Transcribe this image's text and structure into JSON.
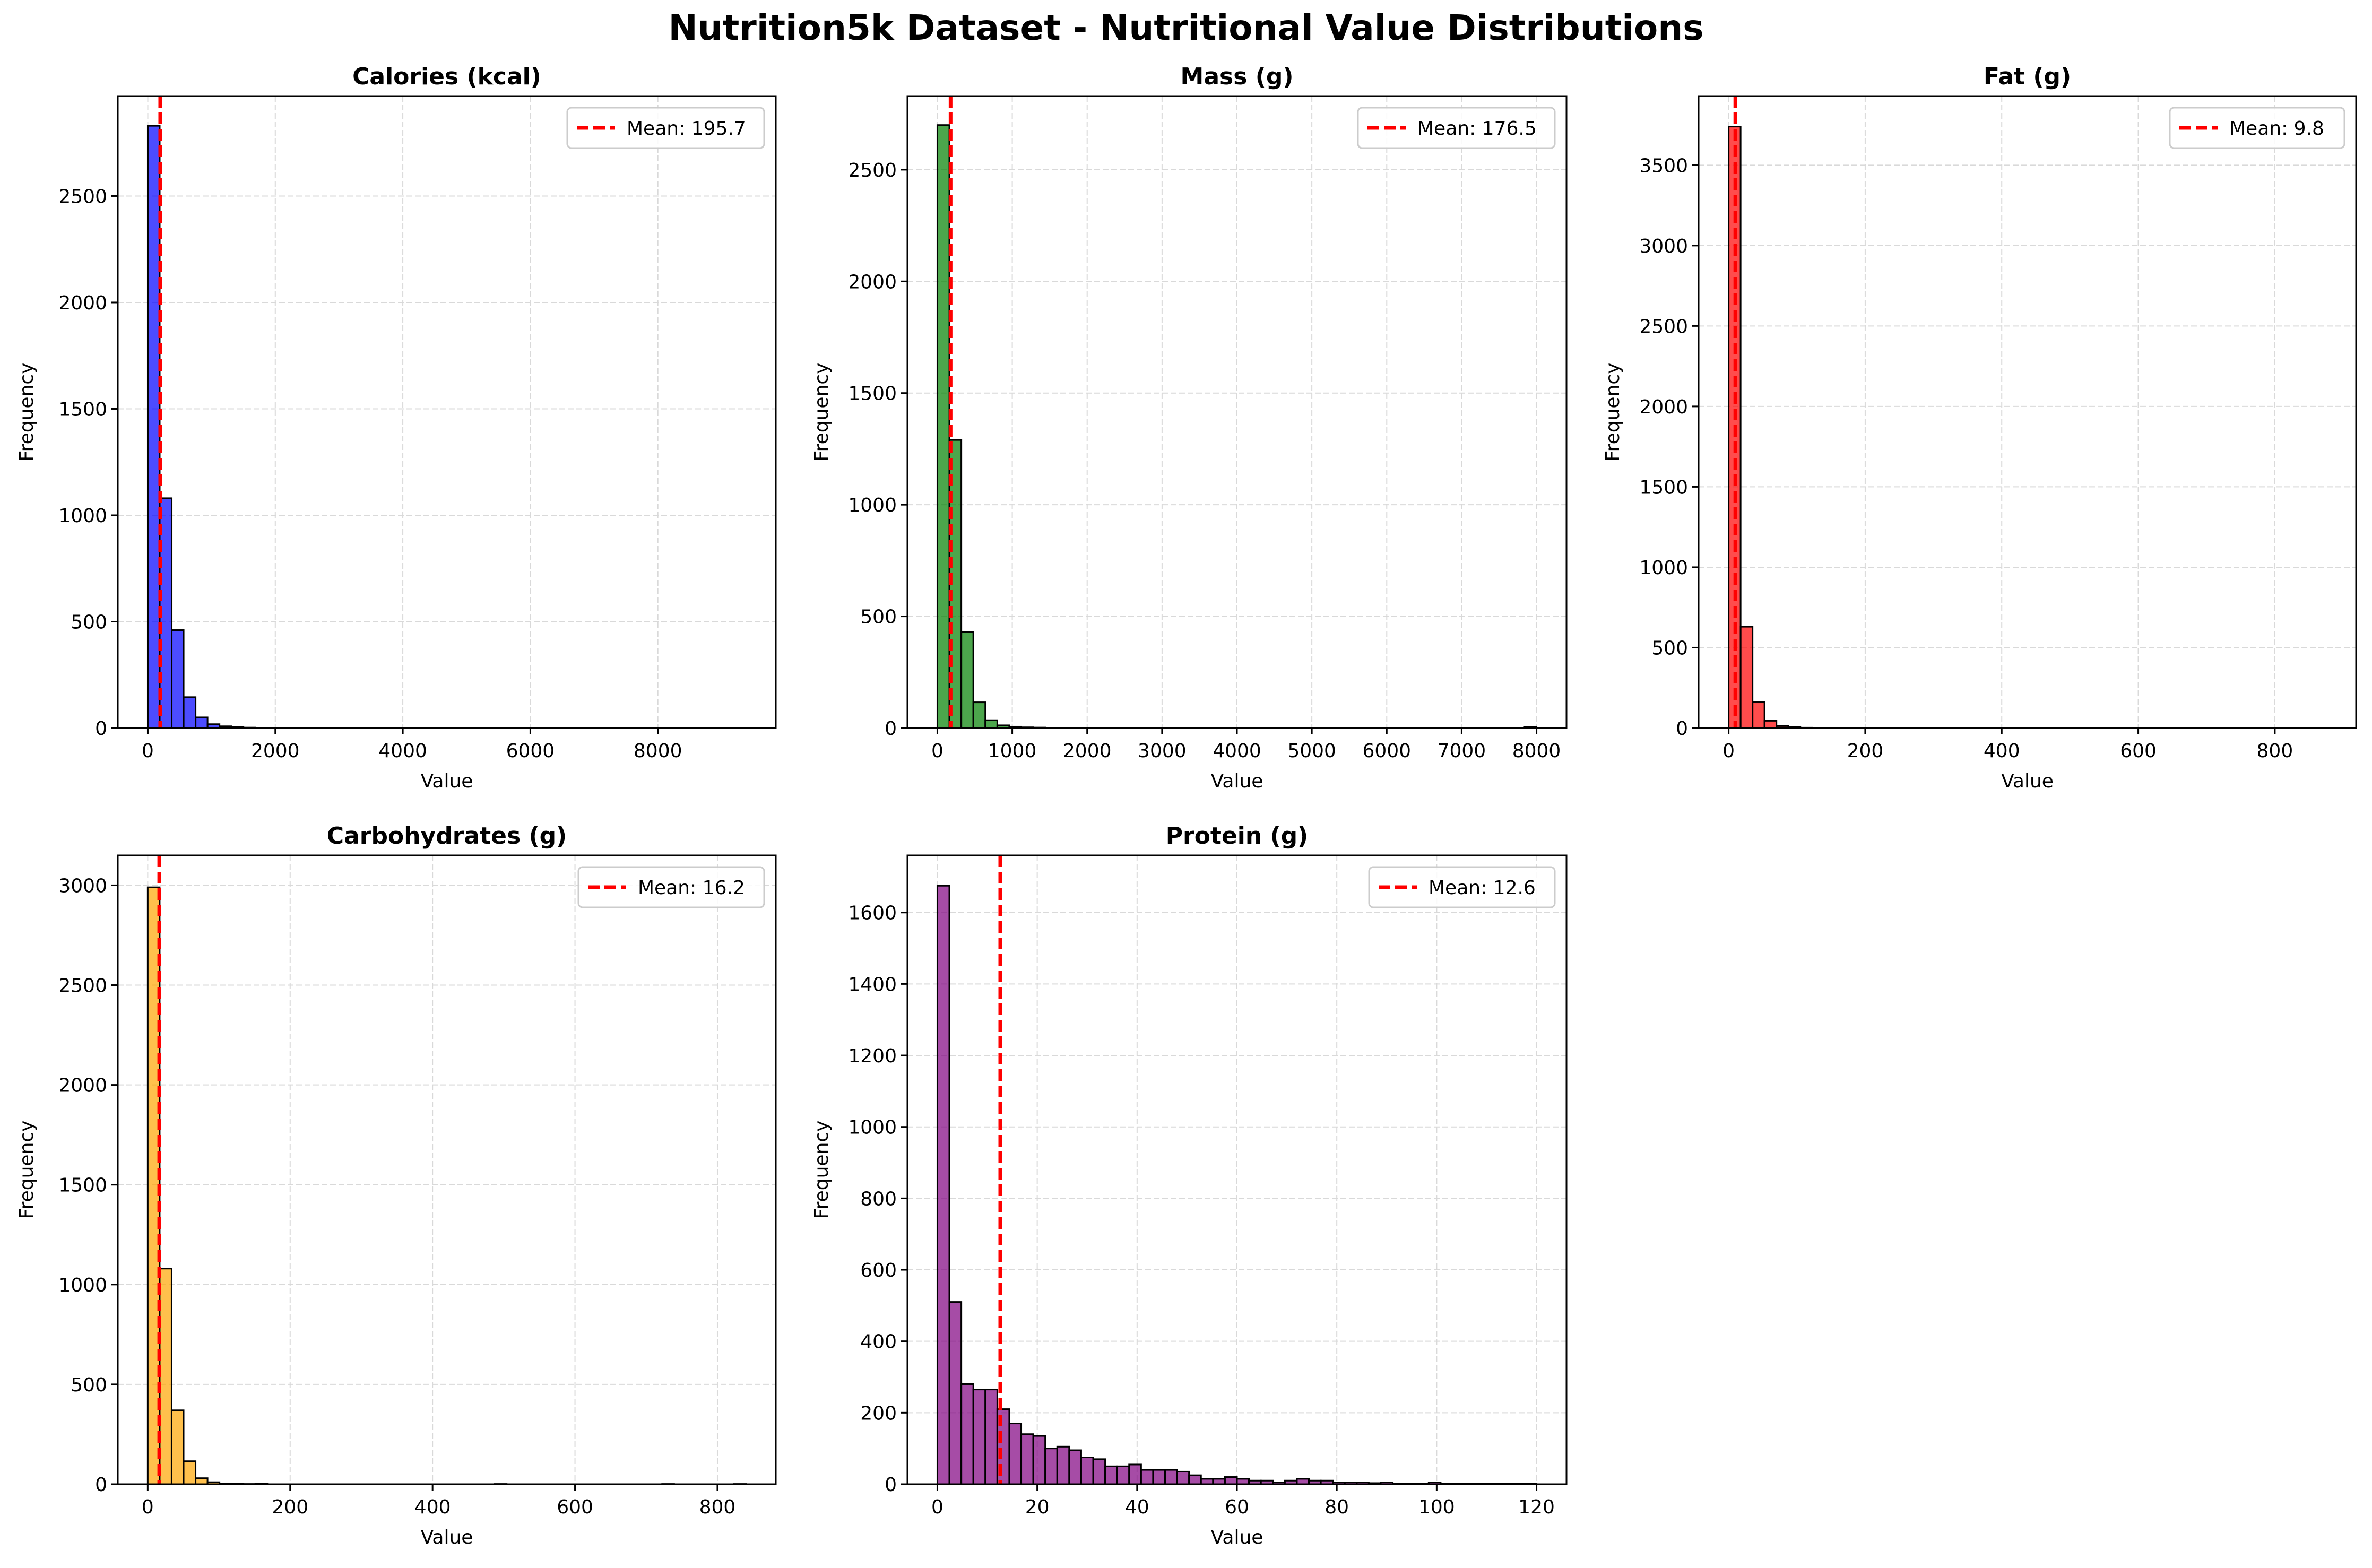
{
  "figure_title": "Nutrition5k Dataset - Nutritional Value Distributions",
  "colors": {
    "mean_line": "#ff0000",
    "edge": "#000000",
    "grid": "#d9d9d9"
  },
  "chart_data": [
    {
      "type": "bar",
      "title": "Calories (kcal)",
      "xlabel": "Value",
      "ylabel": "Frequency",
      "color": "#0000ff",
      "bin_start": 0,
      "bin_width": 187.5,
      "values": [
        2830,
        1080,
        460,
        145,
        50,
        18,
        8,
        4,
        2,
        1,
        1,
        1,
        1,
        1,
        0,
        0,
        0,
        0,
        0,
        0,
        0,
        0,
        0,
        0,
        0,
        0,
        0,
        0,
        0,
        0,
        0,
        0,
        0,
        0,
        0,
        0,
        0,
        0,
        0,
        0,
        0,
        0,
        0,
        0,
        0,
        0,
        0,
        0,
        0,
        1
      ],
      "xlim": [
        -470,
        9850
      ],
      "ylim": [
        0,
        2970
      ],
      "xticks": [
        0,
        2000,
        4000,
        6000,
        8000
      ],
      "yticks": [
        0,
        500,
        1000,
        1500,
        2000,
        2500
      ],
      "mean": 195.7,
      "legend_label": "Mean: 195.7",
      "legend": "top-right",
      "grid": true
    },
    {
      "type": "bar",
      "title": "Mass (g)",
      "xlabel": "Value",
      "ylabel": "Frequency",
      "color": "#008000",
      "bin_start": 0,
      "bin_width": 160,
      "values": [
        2700,
        1290,
        430,
        115,
        35,
        12,
        6,
        3,
        2,
        1,
        1,
        0,
        0,
        0,
        0,
        0,
        0,
        0,
        0,
        0,
        0,
        0,
        0,
        0,
        0,
        0,
        0,
        0,
        0,
        0,
        0,
        0,
        0,
        0,
        0,
        0,
        0,
        0,
        0,
        0,
        0,
        0,
        0,
        0,
        0,
        0,
        0,
        0,
        0,
        4
      ],
      "xlim": [
        -400,
        8400
      ],
      "ylim": [
        0,
        2830
      ],
      "xticks": [
        0,
        1000,
        2000,
        3000,
        4000,
        5000,
        6000,
        7000,
        8000
      ],
      "yticks": [
        0,
        500,
        1000,
        1500,
        2000,
        2500
      ],
      "mean": 176.5,
      "legend_label": "Mean: 176.5",
      "legend": "top-right",
      "grid": true
    },
    {
      "type": "bar",
      "title": "Fat (g)",
      "xlabel": "Value",
      "ylabel": "Frequency",
      "color": "#ff0000",
      "bin_start": 0,
      "bin_width": 17.5,
      "values": [
        3740,
        630,
        160,
        45,
        12,
        5,
        2,
        1,
        1,
        0,
        0,
        0,
        0,
        0,
        0,
        0,
        0,
        0,
        0,
        0,
        0,
        0,
        0,
        0,
        0,
        0,
        0,
        0,
        0,
        0,
        0,
        0,
        0,
        0,
        0,
        0,
        0,
        0,
        0,
        0,
        0,
        0,
        0,
        0,
        0,
        0,
        0,
        0,
        0,
        1
      ],
      "xlim": [
        -44,
        919
      ],
      "ylim": [
        0,
        3930
      ],
      "xticks": [
        0,
        200,
        400,
        600,
        800
      ],
      "yticks": [
        0,
        500,
        1000,
        1500,
        2000,
        2500,
        3000,
        3500
      ],
      "mean": 9.8,
      "legend_label": "Mean: 9.8",
      "legend": "top-right",
      "grid": true
    },
    {
      "type": "bar",
      "title": "Carbohydrates (g)",
      "xlabel": "Value",
      "ylabel": "Frequency",
      "color": "#ffa500",
      "bin_start": 0,
      "bin_width": 16.8,
      "values": [
        2990,
        1080,
        370,
        115,
        30,
        10,
        4,
        2,
        1,
        2,
        0,
        0,
        0,
        0,
        0,
        0,
        0,
        0,
        0,
        0,
        0,
        0,
        0,
        0,
        0,
        0,
        0,
        0,
        0,
        1,
        0,
        0,
        0,
        0,
        0,
        0,
        0,
        0,
        0,
        0,
        0,
        0,
        0,
        1,
        0,
        0,
        0,
        0,
        0,
        1
      ],
      "xlim": [
        -42,
        882
      ],
      "ylim": [
        0,
        3150
      ],
      "xticks": [
        0,
        200,
        400,
        600,
        800
      ],
      "yticks": [
        0,
        500,
        1000,
        1500,
        2000,
        2500,
        3000
      ],
      "mean": 16.2,
      "legend_label": "Mean: 16.2",
      "legend": "top-right",
      "grid": true
    },
    {
      "type": "bar",
      "title": "Protein (g)",
      "xlabel": "Value",
      "ylabel": "Frequency",
      "color": "#800080",
      "bin_start": 0,
      "bin_width": 2.4,
      "values": [
        1675,
        510,
        280,
        265,
        265,
        210,
        170,
        140,
        135,
        100,
        105,
        95,
        75,
        70,
        50,
        50,
        55,
        40,
        40,
        40,
        35,
        25,
        15,
        15,
        20,
        15,
        10,
        10,
        5,
        10,
        15,
        10,
        10,
        5,
        5,
        5,
        3,
        5,
        2,
        2,
        2,
        5,
        2,
        2,
        2,
        2,
        2,
        2,
        2,
        2
      ],
      "xlim": [
        -6,
        126
      ],
      "ylim": [
        0,
        1760
      ],
      "xticks": [
        0,
        20,
        40,
        60,
        80,
        100,
        120
      ],
      "yticks": [
        0,
        200,
        400,
        600,
        800,
        1000,
        1200,
        1400,
        1600
      ],
      "mean": 12.6,
      "legend_label": "Mean: 12.6",
      "legend": "top-right",
      "grid": true
    }
  ]
}
